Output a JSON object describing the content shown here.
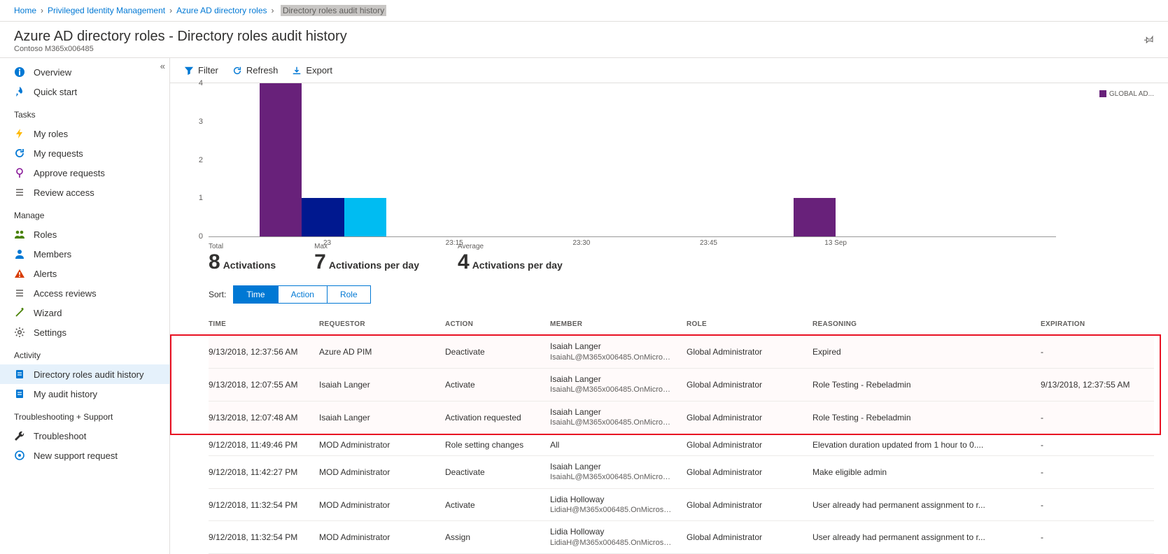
{
  "breadcrumb": {
    "items": [
      "Home",
      "Privileged Identity Management",
      "Azure AD directory roles"
    ],
    "current": "Directory roles audit history"
  },
  "header": {
    "title": "Azure AD directory roles - Directory roles audit history",
    "subtitle": "Contoso M365x006485"
  },
  "sidebar": {
    "top": [
      {
        "icon": "info",
        "label": "Overview",
        "color": "#0078d4"
      },
      {
        "icon": "rocket",
        "label": "Quick start",
        "color": "#0078d4"
      }
    ],
    "tasks_label": "Tasks",
    "tasks": [
      {
        "icon": "bolt",
        "label": "My roles",
        "color": "#ffb900"
      },
      {
        "icon": "refresh",
        "label": "My requests",
        "color": "#0078d4"
      },
      {
        "icon": "approve",
        "label": "Approve requests",
        "color": "#881798"
      },
      {
        "icon": "list",
        "label": "Review access",
        "color": "#605e5c"
      }
    ],
    "manage_label": "Manage",
    "manage": [
      {
        "icon": "people",
        "label": "Roles",
        "color": "#498205"
      },
      {
        "icon": "person",
        "label": "Members",
        "color": "#0078d4"
      },
      {
        "icon": "alert",
        "label": "Alerts",
        "color": "#d83b01"
      },
      {
        "icon": "list",
        "label": "Access reviews",
        "color": "#605e5c"
      },
      {
        "icon": "wand",
        "label": "Wizard",
        "color": "#498205"
      },
      {
        "icon": "gear",
        "label": "Settings",
        "color": "#605e5c"
      }
    ],
    "activity_label": "Activity",
    "activity": [
      {
        "icon": "doc",
        "label": "Directory roles audit history",
        "selected": true,
        "color": "#0078d4"
      },
      {
        "icon": "doc",
        "label": "My audit history",
        "color": "#0078d4"
      }
    ],
    "trouble_label": "Troubleshooting + Support",
    "trouble": [
      {
        "icon": "wrench",
        "label": "Troubleshoot",
        "color": "#323130"
      },
      {
        "icon": "support",
        "label": "New support request",
        "color": "#0078d4"
      }
    ]
  },
  "toolbar": {
    "filter": "Filter",
    "refresh": "Refresh",
    "export": "Export"
  },
  "chart": {
    "ylim": [
      0,
      4
    ],
    "ytick_step": 1,
    "background": "#ffffff",
    "bars": [
      {
        "x_pct": 6.0,
        "w_pct": 5.0,
        "value": 4,
        "color": "#68217a"
      },
      {
        "x_pct": 11.0,
        "w_pct": 5.0,
        "value": 1,
        "color": "#00188f"
      },
      {
        "x_pct": 16.0,
        "w_pct": 5.0,
        "value": 1,
        "color": "#00bcf2"
      },
      {
        "x_pct": 69.0,
        "w_pct": 5.0,
        "value": 1,
        "color": "#68217a"
      }
    ],
    "xlabels": [
      {
        "x_pct": 14,
        "label": "23"
      },
      {
        "x_pct": 29,
        "label": "23:15"
      },
      {
        "x_pct": 44,
        "label": "23:30"
      },
      {
        "x_pct": 59,
        "label": "23:45"
      },
      {
        "x_pct": 74,
        "label": "13 Sep"
      }
    ],
    "legend_label": "GLOBAL AD..."
  },
  "stats": {
    "total": {
      "label": "Total",
      "value": "8",
      "suffix": "Activations"
    },
    "max": {
      "label": "Max",
      "value": "7",
      "suffix": "Activations per day"
    },
    "average": {
      "label": "Average",
      "value": "4",
      "suffix": "Activations per day"
    }
  },
  "sort": {
    "label": "Sort:",
    "options": [
      "Time",
      "Action",
      "Role"
    ],
    "active": 0
  },
  "table": {
    "columns": [
      "TIME",
      "REQUESTOR",
      "ACTION",
      "MEMBER",
      "ROLE",
      "REASONING",
      "EXPIRATION"
    ],
    "col_widths": [
      "150px",
      "180px",
      "150px",
      "195px",
      "180px",
      "auto",
      "170px"
    ],
    "rows": [
      {
        "time": "9/13/2018, 12:37:56 AM",
        "requestor": "Azure AD PIM",
        "action": "Deactivate",
        "member_name": "Isaiah Langer",
        "member_email": "IsaiahL@M365x006485.OnMicrosof...",
        "role": "Global Administrator",
        "reasoning": "Expired",
        "expiration": "-",
        "hl": true
      },
      {
        "time": "9/13/2018, 12:07:55 AM",
        "requestor": "Isaiah Langer",
        "action": "Activate",
        "member_name": "Isaiah Langer",
        "member_email": "IsaiahL@M365x006485.OnMicrosof...",
        "role": "Global Administrator",
        "reasoning": "Role Testing - Rebeladmin",
        "expiration": "9/13/2018, 12:37:55 AM",
        "hl": true
      },
      {
        "time": "9/13/2018, 12:07:48 AM",
        "requestor": "Isaiah Langer",
        "action": "Activation requested",
        "member_name": "Isaiah Langer",
        "member_email": "IsaiahL@M365x006485.OnMicrosof...",
        "role": "Global Administrator",
        "reasoning": "Role Testing - Rebeladmin",
        "expiration": "-",
        "hl": true
      },
      {
        "time": "9/12/2018, 11:49:46 PM",
        "requestor": "MOD Administrator",
        "action": "Role setting changes",
        "member_name": "All",
        "member_email": "",
        "role": "Global Administrator",
        "reasoning": "Elevation duration updated from 1 hour to 0....",
        "expiration": "-"
      },
      {
        "time": "9/12/2018, 11:42:27 PM",
        "requestor": "MOD Administrator",
        "action": "Deactivate",
        "member_name": "Isaiah Langer",
        "member_email": "IsaiahL@M365x006485.OnMicrosof...",
        "role": "Global Administrator",
        "reasoning": "Make eligible admin",
        "expiration": "-"
      },
      {
        "time": "9/12/2018, 11:32:54 PM",
        "requestor": "MOD Administrator",
        "action": "Activate",
        "member_name": "Lidia Holloway",
        "member_email": "LidiaH@M365x006485.OnMicrosof...",
        "role": "Global Administrator",
        "reasoning": "User already had permanent assignment to r...",
        "expiration": "-"
      },
      {
        "time": "9/12/2018, 11:32:54 PM",
        "requestor": "MOD Administrator",
        "action": "Assign",
        "member_name": "Lidia Holloway",
        "member_email": "LidiaH@M365x006485.OnMicrosof...",
        "role": "Global Administrator",
        "reasoning": "User already had permanent assignment to r...",
        "expiration": "-"
      }
    ]
  }
}
